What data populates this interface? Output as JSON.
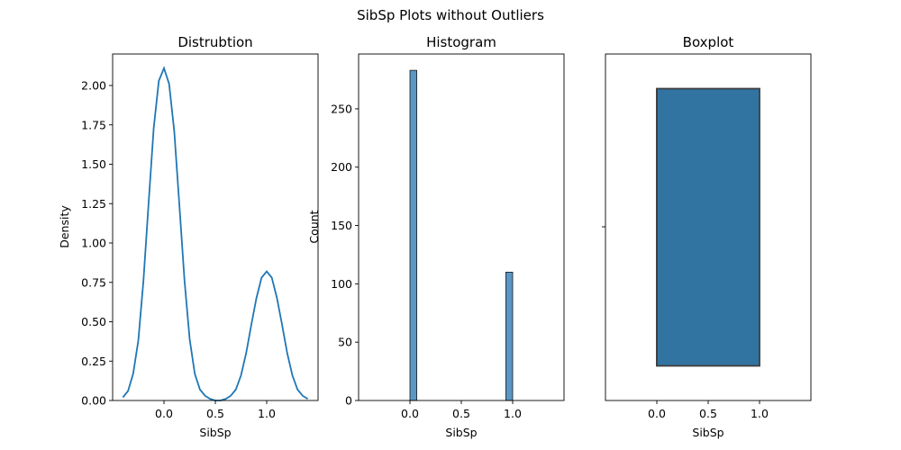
{
  "figure": {
    "suptitle": "SibSp Plots without Outliers"
  },
  "chart_data": [
    {
      "type": "line",
      "title": "Distrubtion",
      "xlabel": "SibSp",
      "ylabel": "Density",
      "xlim": [
        -0.5,
        1.5
      ],
      "ylim": [
        0,
        2.2
      ],
      "xticks": [
        0.0,
        0.5,
        1.0
      ],
      "xtick_labels": [
        "0.0",
        "0.5",
        "1.0"
      ],
      "yticks": [
        0,
        0.25,
        0.5,
        0.75,
        1.0,
        1.25,
        1.5,
        1.75,
        2.0
      ],
      "ytick_labels": [
        "0.00",
        "0.25",
        "0.50",
        "0.75",
        "1.00",
        "1.25",
        "1.50",
        "1.75",
        "2.00"
      ],
      "series": [
        {
          "color": "#1f77b4",
          "x": [
            -0.4,
            -0.35,
            -0.3,
            -0.25,
            -0.2,
            -0.15,
            -0.1,
            -0.05,
            0.0,
            0.05,
            0.1,
            0.15,
            0.2,
            0.25,
            0.3,
            0.35,
            0.4,
            0.45,
            0.5,
            0.55,
            0.6,
            0.65,
            0.7,
            0.75,
            0.8,
            0.85,
            0.9,
            0.95,
            1.0,
            1.05,
            1.1,
            1.15,
            1.2,
            1.25,
            1.3,
            1.35,
            1.4
          ],
          "y": [
            0.02,
            0.06,
            0.17,
            0.38,
            0.76,
            1.25,
            1.73,
            2.03,
            2.11,
            2.01,
            1.71,
            1.24,
            0.76,
            0.39,
            0.17,
            0.07,
            0.03,
            0.01,
            0.0,
            0.0,
            0.01,
            0.03,
            0.07,
            0.16,
            0.3,
            0.48,
            0.65,
            0.78,
            0.82,
            0.78,
            0.65,
            0.48,
            0.3,
            0.16,
            0.07,
            0.03,
            0.01
          ]
        }
      ]
    },
    {
      "type": "bar",
      "title": "Histogram",
      "xlabel": "SibSp",
      "ylabel": "Count",
      "xlim": [
        -0.5,
        1.5
      ],
      "ylim": [
        0,
        297
      ],
      "xticks": [
        0.0,
        0.5,
        1.0
      ],
      "xtick_labels": [
        "0.0",
        "0.5",
        "1.0"
      ],
      "yticks": [
        0,
        50,
        100,
        150,
        200,
        250
      ],
      "ytick_labels": [
        "0",
        "50",
        "100",
        "150",
        "200",
        "250"
      ],
      "bar_color": "#5b97c3",
      "bars": [
        {
          "x_start": 0.0,
          "x_end": 0.0667,
          "value": 283
        },
        {
          "x_start": 0.9333,
          "x_end": 1.0,
          "value": 110
        }
      ]
    },
    {
      "type": "box",
      "title": "Boxplot",
      "xlabel": "SibSp",
      "xlim": [
        -0.5,
        1.5
      ],
      "xticks": [
        0.0,
        0.5,
        1.0
      ],
      "xtick_labels": [
        "0.0",
        "0.5",
        "1.0"
      ],
      "box_color": "#3274a1",
      "edge_color": "#3f3f3f",
      "q1": 0,
      "median": 0,
      "q3": 1,
      "whisker_low": 0,
      "whisker_high": 1
    }
  ]
}
